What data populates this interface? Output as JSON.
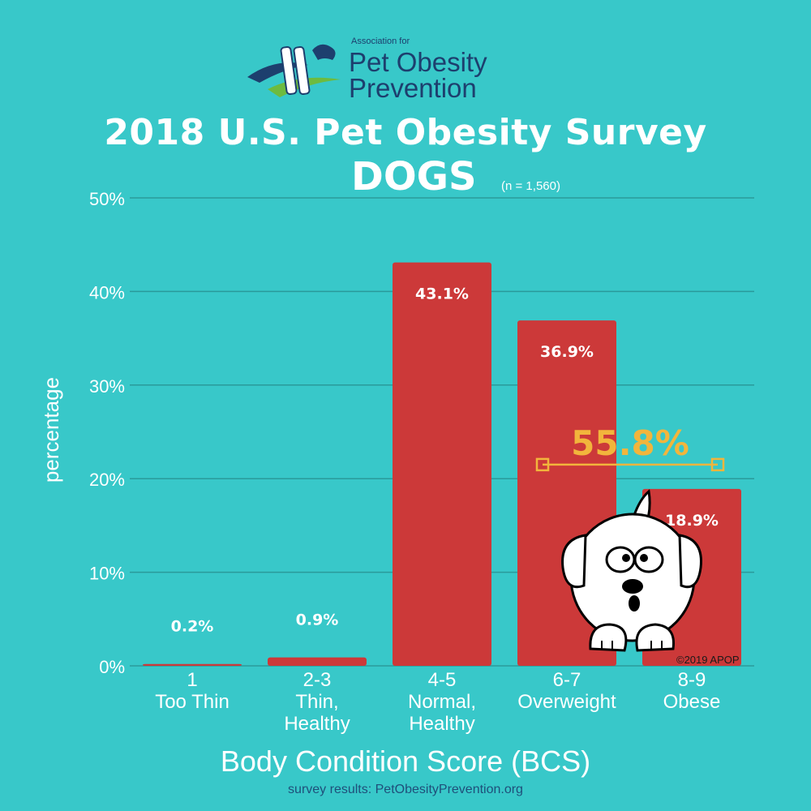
{
  "logo": {
    "small_text": "Association for",
    "line1": "Pet Obesity",
    "line2": "Prevention"
  },
  "header": {
    "title": "2018 U.S. Pet Obesity Survey",
    "subtitle": "DOGS",
    "sample_note": "(n = 1,560)"
  },
  "chart_data": {
    "type": "bar",
    "categories": [
      [
        "1",
        "Too Thin"
      ],
      [
        "2-3",
        "Thin,",
        "Healthy"
      ],
      [
        "4-5",
        "Normal,",
        "Healthy"
      ],
      [
        "6-7",
        "Overweight"
      ],
      [
        "8-9",
        "Obese"
      ]
    ],
    "values": [
      0.2,
      0.9,
      43.1,
      36.9,
      18.9
    ],
    "data_labels": [
      "0.2%",
      "0.9%",
      "43.1%",
      "36.9%",
      "18.9%"
    ],
    "ylim": [
      0,
      50
    ],
    "yticks": [
      0,
      10,
      20,
      30,
      40,
      50
    ],
    "ytick_labels": [
      "0%",
      "10%",
      "20%",
      "30%",
      "40%",
      "50%"
    ],
    "ylabel": "percentage",
    "xlabel": "Body Condition Score (BCS)",
    "grid": true,
    "annotation": {
      "text": "55.8%",
      "spans_categories": [
        "6-7",
        "8-9"
      ],
      "y": 21.5
    },
    "colors": {
      "bar": "#cc3939",
      "grid": "#2a9a9a",
      "annotation": "#f2b53c"
    }
  },
  "footer": {
    "copyright": "©2019 APOP",
    "source": "survey results: PetObesityPrevention.org"
  }
}
